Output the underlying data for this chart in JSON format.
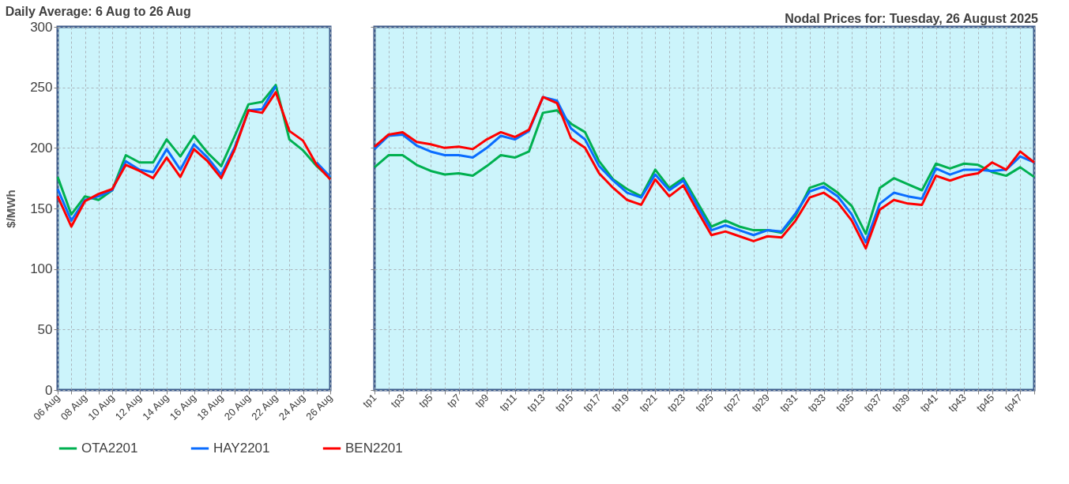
{
  "chart_data": [
    {
      "type": "line",
      "title": "Daily Average: 6 Aug to 26 Aug",
      "ylabel": "$/MWh",
      "categories": [
        "06 Aug",
        null,
        "08 Aug",
        null,
        "10 Aug",
        null,
        "12 Aug",
        null,
        "14 Aug",
        null,
        "16 Aug",
        null,
        "18 Aug",
        null,
        "20 Aug",
        null,
        "22 Aug",
        null,
        "24 Aug",
        null,
        "26 Aug"
      ],
      "ylim": [
        0,
        300
      ],
      "yticks": [
        0,
        50,
        100,
        150,
        200,
        250,
        300
      ],
      "grid": true,
      "legend": "bottom",
      "line_style": "solid",
      "series": [
        {
          "name": "OTA2201",
          "color": "#00b050",
          "values": [
            176,
            145,
            160,
            157,
            165,
            194,
            188,
            188,
            207,
            193,
            210,
            196,
            185,
            210,
            236,
            238,
            252,
            207,
            198,
            185,
            175
          ]
        },
        {
          "name": "HAY2201",
          "color": "#0a6cff",
          "values": [
            166,
            140,
            157,
            160,
            165,
            189,
            182,
            180,
            199,
            182,
            203,
            192,
            178,
            201,
            231,
            232,
            251,
            null,
            null,
            188,
            176
          ]
        },
        {
          "name": "BEN2201",
          "color": "#ff0000",
          "values": [
            160,
            135,
            156,
            162,
            166,
            186,
            181,
            175,
            192,
            176,
            199,
            189,
            175,
            199,
            231,
            229,
            246,
            214,
            206,
            186,
            174
          ]
        }
      ]
    },
    {
      "type": "line",
      "title": "Nodal Prices for: Tuesday, 26 August 2025",
      "categories": [
        "tp1",
        null,
        "tp3",
        null,
        "tp5",
        null,
        "tp7",
        null,
        "tp9",
        null,
        "tp11",
        null,
        "tp13",
        null,
        "tp15",
        null,
        "tp17",
        null,
        "tp19",
        null,
        "tp21",
        null,
        "tp23",
        null,
        "tp25",
        null,
        "tp27",
        null,
        "tp29",
        null,
        "tp31",
        null,
        "tp33",
        null,
        "tp35",
        null,
        "tp37",
        null,
        "tp39",
        null,
        "tp41",
        null,
        "tp43",
        null,
        "tp45",
        null,
        "tp47",
        null
      ],
      "ylim": [
        0,
        300
      ],
      "yticks": [
        0,
        50,
        100,
        150,
        200,
        250,
        300
      ],
      "tick_labels": "x",
      "grid": true,
      "legend": "bottom",
      "line_style": "solid",
      "series": [
        {
          "name": "OTA2201",
          "color": "#00b050",
          "values": [
            184,
            194,
            194,
            186,
            181,
            178,
            179,
            177,
            185,
            194,
            192,
            197,
            229,
            231,
            220,
            213,
            189,
            174,
            166,
            160,
            182,
            167,
            175,
            155,
            135,
            140,
            135,
            132,
            132,
            130,
            144,
            167,
            171,
            163,
            152,
            129,
            167,
            175,
            170,
            165,
            187,
            183,
            187,
            186,
            180,
            177,
            184,
            176
          ]
        },
        {
          "name": "HAY2201",
          "color": "#0a6cff",
          "values": [
            199,
            210,
            211,
            202,
            197,
            194,
            194,
            192,
            200,
            210,
            207,
            214,
            242,
            239,
            216,
            207,
            185,
            173,
            163,
            159,
            178,
            165,
            173,
            152,
            132,
            136,
            132,
            128,
            132,
            131,
            146,
            164,
            168,
            160,
            145,
            122,
            154,
            163,
            160,
            158,
            183,
            178,
            182,
            182,
            181,
            182,
            193,
            188
          ]
        },
        {
          "name": "BEN2201",
          "color": "#ff0000",
          "values": [
            201,
            211,
            213,
            205,
            203,
            200,
            201,
            199,
            207,
            213,
            209,
            215,
            242,
            237,
            208,
            200,
            179,
            167,
            157,
            153,
            174,
            160,
            169,
            148,
            128,
            131,
            127,
            123,
            127,
            126,
            140,
            159,
            163,
            155,
            140,
            117,
            149,
            157,
            154,
            153,
            177,
            173,
            177,
            179,
            188,
            182,
            197,
            188
          ]
        }
      ]
    }
  ]
}
